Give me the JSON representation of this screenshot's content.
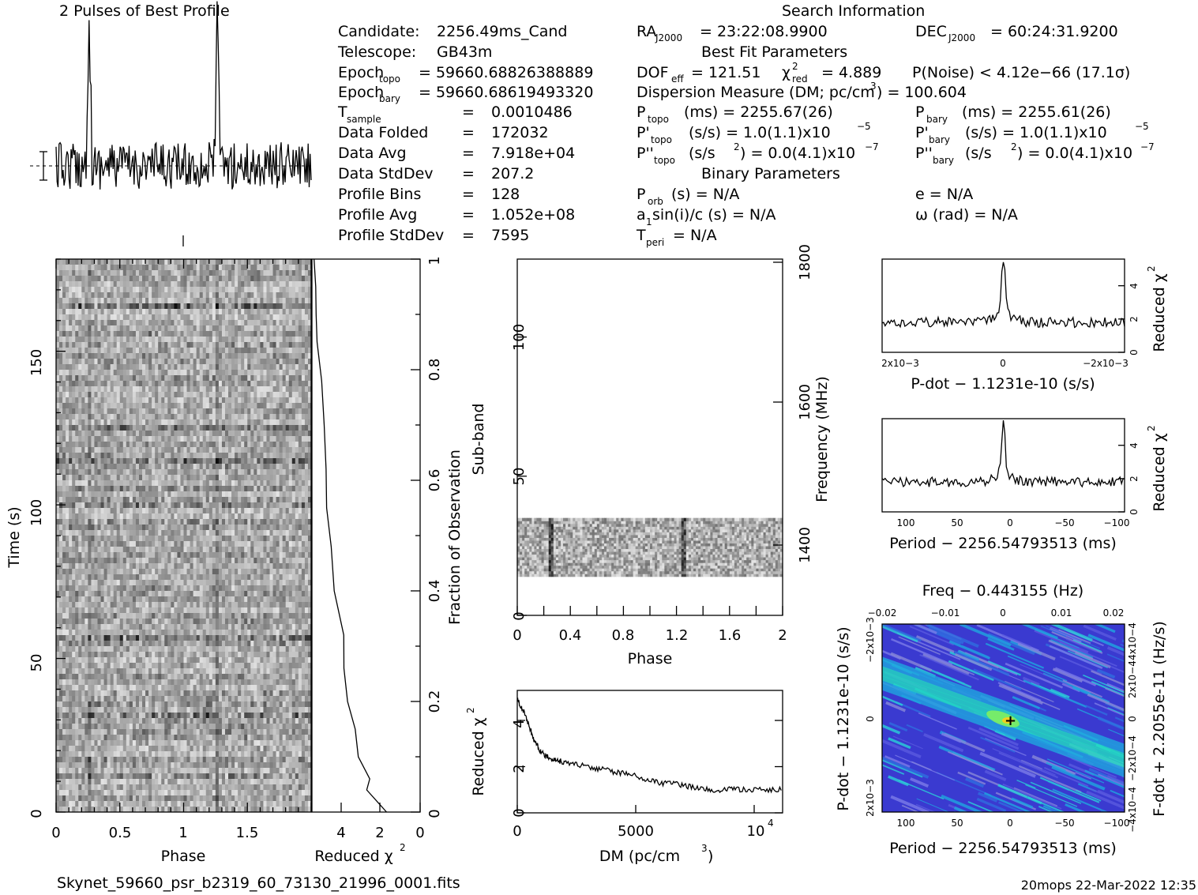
{
  "title_profile": "2 Pulses of Best Profile",
  "search_info_title": "Search Information",
  "footer": {
    "filename": "Skynet_59660_psr_b2319_60_73130_21996_0001.fits",
    "stamp": "20mops 22-Mar-2022 12:35"
  },
  "info_left": [
    {
      "label": "Candidate:",
      "value": "2256.49ms_Cand"
    },
    {
      "label": "Telescope:",
      "value": "GB43m"
    },
    {
      "label": "Epoch",
      "sub": "topo",
      "value": "= 59660.68826388889"
    },
    {
      "label": "Epoch",
      "sub": "bary",
      "value": "= 59660.68619493320"
    },
    {
      "label": "T",
      "sub": "sample",
      "value": "0.0010486"
    },
    {
      "label": "Data Folded",
      "value": "172032"
    },
    {
      "label": "Data Avg",
      "value": "7.918e+04"
    },
    {
      "label": "Data StdDev",
      "value": "207.2"
    },
    {
      "label": "Profile Bins",
      "value": "128"
    },
    {
      "label": "Profile Avg",
      "value": "1.052e+08"
    },
    {
      "label": "Profile StdDev",
      "value": "7595"
    }
  ],
  "info_mid": {
    "ra_label": "RA",
    "ra_sub": "J2000",
    "ra_value": "= 23:22:08.9900",
    "best_fit_title": "Best Fit Parameters",
    "dof_label": "DOF",
    "dof_sub": "eff",
    "dof_value": "= 121.51",
    "chi_label": "χ",
    "chi_sub": "red",
    "chi_value": "= 4.889",
    "dm_text": "Dispersion Measure (DM; pc/cm",
    "dm_value": ") = 100.604",
    "ptopo_label": "P",
    "ptopo_sub": "topo",
    "ptopo_value": "(ms) =  2255.67(26)",
    "pdtopo_label": "P'",
    "pdtopo_sub": "topo",
    "pdtopo_value": "(s/s) =  1.0(1.1)x10",
    "pdtopo_exp": "−5",
    "pddtopo_label": "P''",
    "pddtopo_sub": "topo",
    "pddtopo_value": "(s/s",
    "pddtopo_value2": ") = 0.0(4.1)x10",
    "pddtopo_exp": "−7",
    "binary_title": "Binary Parameters",
    "porb_label": "P",
    "porb_sub": "orb",
    "porb_value": "(s) = N/A",
    "a1_label": "a",
    "a1_sub": "1",
    "a1_value": "sin(i)/c (s) = N/A",
    "tperi_label": "T",
    "tperi_sub": "peri",
    "tperi_value": "= N/A"
  },
  "info_right": {
    "dec_label": "DEC",
    "dec_sub": "J2000",
    "dec_value": "= 60:24:31.9200",
    "pnoise": "P(Noise) < 4.12e−66  (17.1σ)",
    "pbary_label": "P",
    "pbary_sub": "bary",
    "pbary_value": "(ms) =  2255.61(26)",
    "pdbary_label": "P'",
    "pdbary_sub": "bary",
    "pdbary_value": "(s/s) =  1.0(1.1)x10",
    "pdbary_exp": "−5",
    "pddbary_label": "P''",
    "pddbary_sub": "bary",
    "pddbary_value": "(s/s",
    "pddbary_value2": ") = 0.0(4.1)x10",
    "pddbary_exp": "−7",
    "e_value": "e = N/A",
    "omega_value": "ω (rad) = N/A"
  },
  "labels": {
    "phase": "Phase",
    "time": "Time (s)",
    "reduced_chi": "Reduced χ",
    "fraction": "Fraction of Observation",
    "subband": "Sub-band",
    "frequency": "Frequency (MHz)",
    "dm": "DM (pc/cm",
    "pdot_xlabel": "P-dot − 1.1231e-10 (s/s)",
    "period_xlabel": "Period − 2256.54793513 (ms)",
    "freq_top": "Freq − 0.443155 (Hz)",
    "pdot_ylabel": "P-dot − 1.1231e-10 (s/s)",
    "fdot_ylabel": "F-dot + 2.2055e-11 (Hz/s)"
  },
  "chart_data": [
    {
      "type": "line",
      "title": "2 Pulses of Best Profile",
      "x_range": [
        0,
        2
      ],
      "peaks_at_phase": [
        0.25,
        1.25
      ],
      "bins": 128
    },
    {
      "type": "heatmap",
      "xlabel": "Phase",
      "ylabel": "Time (s)",
      "xlim": [
        0,
        2
      ],
      "ylim": [
        0,
        180
      ],
      "xticks": [
        "0",
        "0.5",
        "1",
        "1.5"
      ],
      "yticks": [
        "0",
        "50",
        "100",
        "150"
      ]
    },
    {
      "type": "line",
      "xlabel": "Reduced χ2",
      "ylabel": "Fraction of Observation",
      "xlim": [
        5,
        0
      ],
      "ylim": [
        0,
        1
      ],
      "xticks": [
        "4",
        "2",
        "0"
      ],
      "yticks": [
        "0",
        "0.2",
        "0.4",
        "0.6",
        "0.8",
        "1"
      ],
      "x": [
        1.6,
        2.4,
        2.3,
        2.8,
        3.0,
        3.3,
        3.5,
        3.6,
        3.9,
        4.1,
        4.3,
        4.4,
        4.5,
        4.6,
        4.7,
        4.8,
        4.9,
        4.95
      ],
      "y": [
        0.0,
        0.04,
        0.06,
        0.1,
        0.15,
        0.2,
        0.26,
        0.32,
        0.4,
        0.48,
        0.55,
        0.62,
        0.7,
        0.78,
        0.85,
        0.9,
        0.95,
        1.0
      ]
    },
    {
      "type": "heatmap",
      "xlabel": "Phase",
      "ylabel": "Sub-band",
      "y2label": "Frequency (MHz)",
      "xlim": [
        0,
        2
      ],
      "ylim": [
        0,
        128
      ],
      "xticks": [
        "0",
        "0.4",
        "0.8",
        "1.2",
        "1.6",
        "2"
      ],
      "yticks": [
        "0",
        "50",
        "100"
      ],
      "y2ticks": [
        "1400",
        "1600",
        "1800"
      ],
      "active_subbands": [
        14,
        35
      ]
    },
    {
      "type": "line",
      "xlabel": "DM (pc/cm3)",
      "ylabel": "Reduced χ2",
      "xlim": [
        0,
        11200
      ],
      "ylim": [
        0,
        5.3
      ],
      "xticks": [
        "0",
        "5000",
        "10"
      ],
      "yticks": [
        "0",
        "2",
        "4"
      ],
      "x": [
        0,
        300,
        700,
        1000,
        1500,
        2000,
        3000,
        4000,
        5000,
        6000,
        7000,
        8000,
        9000,
        10000,
        11200
      ],
      "y": [
        4.9,
        4.3,
        3.2,
        2.6,
        2.3,
        2.2,
        2.0,
        1.8,
        1.6,
        1.3,
        1.2,
        1.0,
        1.0,
        1.0,
        1.0
      ]
    },
    {
      "type": "line",
      "xlabel": "P-dot − 1.1231e-10 (s/s)",
      "ylabel": "Reduced χ2",
      "xticks": [
        "2x10−3",
        "0",
        "−2x10−3"
      ],
      "yticks": [
        "0",
        "2",
        "4"
      ],
      "peak": 5.0
    },
    {
      "type": "line",
      "xlabel": "Period − 2256.54793513 (ms)",
      "ylabel": "Reduced χ2",
      "xlim": [
        120,
        -105
      ],
      "xticks": [
        "100",
        "50",
        "0",
        "−50",
        "−100"
      ],
      "yticks": [
        "0",
        "2",
        "4"
      ],
      "peak": 5.0
    },
    {
      "type": "heatmap",
      "xlabel": "Period − 2256.54793513 (ms)",
      "ylabel": "P-dot − 1.1231e-10 (s/s)",
      "x2label": "Freq − 0.443155 (Hz)",
      "y2label": "F-dot + 2.2055e-11 (Hz/s)",
      "xticks": [
        "100",
        "50",
        "0",
        "−50",
        "−100"
      ],
      "x2ticks": [
        "−0.02",
        "−0.01",
        "0",
        "0.01",
        "0.02"
      ],
      "yticks": [
        "2x10−3",
        "0",
        "−2x10−3"
      ],
      "y2ticks": [
        "−4x10−4",
        "−2x10−4",
        "0",
        "2x10−4",
        "4x10−4"
      ]
    }
  ]
}
